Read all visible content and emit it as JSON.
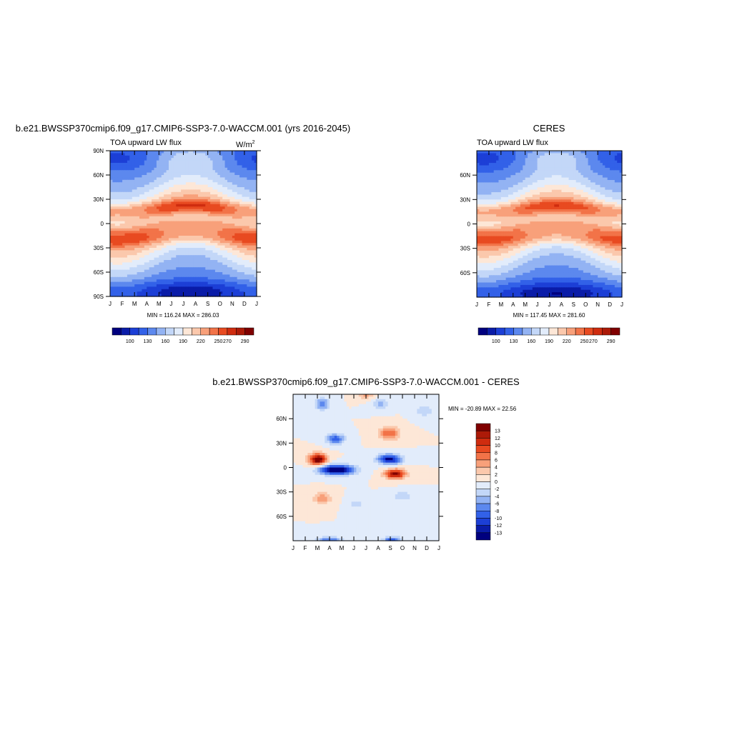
{
  "colors": {
    "abs_scale": [
      "#00007f",
      "#0a1ca8",
      "#1c3fd6",
      "#3261e8",
      "#5c88ee",
      "#93b3f3",
      "#c3d7f8",
      "#e2ecfb",
      "#fde7d7",
      "#fbc8ac",
      "#f8a07a",
      "#f27348",
      "#e84a21",
      "#cf2c0f",
      "#ac1a08",
      "#800000"
    ],
    "diff_scale": [
      "#00007f",
      "#0a1ca8",
      "#1c3fd6",
      "#3261e8",
      "#5c88ee",
      "#93b3f3",
      "#c3d7f8",
      "#e2ecfb",
      "#fde7d7",
      "#fbc8ac",
      "#f8a07a",
      "#f27348",
      "#e84a21",
      "#cf2c0f",
      "#ac1a08",
      "#800000"
    ]
  },
  "chart_data": [
    {
      "type": "heatmap",
      "title": "b.e21.BWSSP370cmip6.f09_g17.CMIP6-SSP3-7.0-WACCM.001 (yrs 2016-2045)",
      "subtitle_left": "TOA upward LW flux",
      "units": "W/m",
      "units_sup": "2",
      "x_ticks": [
        "J",
        "F",
        "M",
        "A",
        "M",
        "J",
        "J",
        "A",
        "S",
        "O",
        "N",
        "D",
        "J"
      ],
      "y_ticks": [
        "90N",
        "60N",
        "30N",
        "0",
        "30S",
        "60S",
        "90S"
      ],
      "stats": "MIN = 116.24 MAX = 286.03",
      "colorbar_labels": [
        "100",
        "130",
        "160",
        "190",
        "220",
        "250",
        "270",
        "290"
      ],
      "min": 116.24,
      "max": 286.03
    },
    {
      "type": "heatmap",
      "title": "CERES",
      "subtitle_left": "TOA upward LW flux",
      "x_ticks": [
        "J",
        "F",
        "M",
        "A",
        "M",
        "J",
        "J",
        "A",
        "S",
        "O",
        "N",
        "D",
        "J"
      ],
      "y_ticks": [
        "60N",
        "30N",
        "0",
        "30S",
        "60S"
      ],
      "stats": "MIN = 117.45 MAX = 281.60",
      "colorbar_labels": [
        "100",
        "130",
        "160",
        "190",
        "220",
        "250",
        "270",
        "290"
      ],
      "min": 117.45,
      "max": 281.6
    },
    {
      "type": "heatmap",
      "title": "b.e21.BWSSP370cmip6.f09_g17.CMIP6-SSP3-7.0-WACCM.001 - CERES",
      "x_ticks": [
        "J",
        "F",
        "M",
        "A",
        "M",
        "J",
        "J",
        "A",
        "S",
        "O",
        "N",
        "D",
        "J"
      ],
      "y_ticks": [
        "60N",
        "30N",
        "0",
        "30S",
        "60S"
      ],
      "stats": "MIN = -20.89 MAX =  22.56",
      "colorbar_labels": [
        "13",
        "12",
        "10",
        "8",
        "6",
        "4",
        "2",
        "0",
        "-2",
        "-4",
        "-6",
        "-8",
        "-10",
        "-12",
        "-13"
      ],
      "min": -20.89,
      "max": 22.56
    }
  ]
}
